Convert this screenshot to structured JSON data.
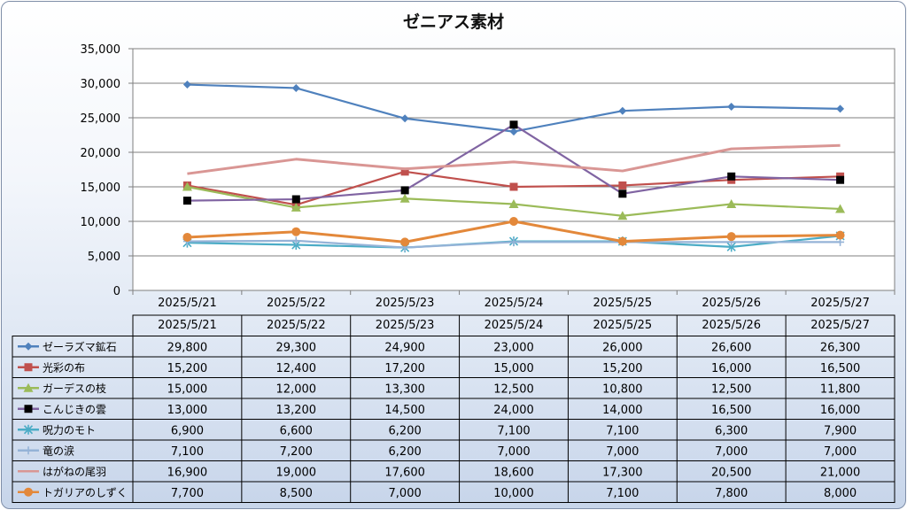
{
  "title": "ゼニアス素材",
  "chart_data": {
    "type": "line",
    "title": "ゼニアス素材",
    "categories": [
      "2025/5/21",
      "2025/5/22",
      "2025/5/23",
      "2025/5/24",
      "2025/5/25",
      "2025/5/26",
      "2025/5/27"
    ],
    "ylim": [
      0,
      35000
    ],
    "yticks": [
      "0",
      "5,000",
      "10,000",
      "15,000",
      "20,000",
      "25,000",
      "30,000",
      "35,000"
    ],
    "ytick_values": [
      0,
      5000,
      10000,
      15000,
      20000,
      25000,
      30000,
      35000
    ],
    "grid": true,
    "legend": "data-table",
    "series": [
      {
        "name": "ゼーラズマ鉱石",
        "color": "#4f81bd",
        "marker": "diamond",
        "values": [
          29800,
          29300,
          24900,
          23000,
          26000,
          26600,
          26300
        ],
        "labels": [
          "29,800",
          "29,300",
          "24,900",
          "23,000",
          "26,000",
          "26,600",
          "26,300"
        ]
      },
      {
        "name": "光彩の布",
        "color": "#c0504d",
        "marker": "square",
        "values": [
          15200,
          12400,
          17200,
          15000,
          15200,
          16000,
          16500
        ],
        "labels": [
          "15,200",
          "12,400",
          "17,200",
          "15,000",
          "15,200",
          "16,000",
          "16,500"
        ]
      },
      {
        "name": "ガーデスの枝",
        "color": "#9bbb59",
        "marker": "triangle",
        "values": [
          15000,
          12000,
          13300,
          12500,
          10800,
          12500,
          11800
        ],
        "labels": [
          "15,000",
          "12,000",
          "13,300",
          "12,500",
          "10,800",
          "12,500",
          "11,800"
        ]
      },
      {
        "name": "こんじきの雲",
        "color": "#8064a2",
        "marker": "blacksquare",
        "values": [
          13000,
          13200,
          14500,
          24000,
          14000,
          16500,
          16000
        ],
        "labels": [
          "13,000",
          "13,200",
          "14,500",
          "24,000",
          "14,000",
          "16,500",
          "16,000"
        ]
      },
      {
        "name": "呪力のモト",
        "color": "#4bacc6",
        "marker": "star",
        "values": [
          6900,
          6600,
          6200,
          7100,
          7100,
          6300,
          7900
        ],
        "labels": [
          "6,900",
          "6,600",
          "6,200",
          "7,100",
          "7,100",
          "6,300",
          "7,900"
        ]
      },
      {
        "name": "竜の涙",
        "color": "#95b3d7",
        "marker": "plus",
        "values": [
          7100,
          7200,
          6200,
          7000,
          7000,
          7000,
          7000
        ],
        "labels": [
          "7,100",
          "7,200",
          "6,200",
          "7,000",
          "7,000",
          "7,000",
          "7,000"
        ]
      },
      {
        "name": "はがねの尾羽",
        "color": "#d99694",
        "marker": "none",
        "values": [
          16900,
          19000,
          17600,
          18600,
          17300,
          20500,
          21000
        ],
        "labels": [
          "16,900",
          "19,000",
          "17,600",
          "18,600",
          "17,300",
          "20,500",
          "21,000"
        ]
      },
      {
        "name": "トガリアのしずく",
        "color": "#e3883a",
        "marker": "circle",
        "values": [
          7700,
          8500,
          7000,
          10000,
          7100,
          7800,
          8000
        ],
        "labels": [
          "7,700",
          "8,500",
          "7,000",
          "10,000",
          "7,100",
          "7,800",
          "8,000"
        ]
      }
    ]
  }
}
